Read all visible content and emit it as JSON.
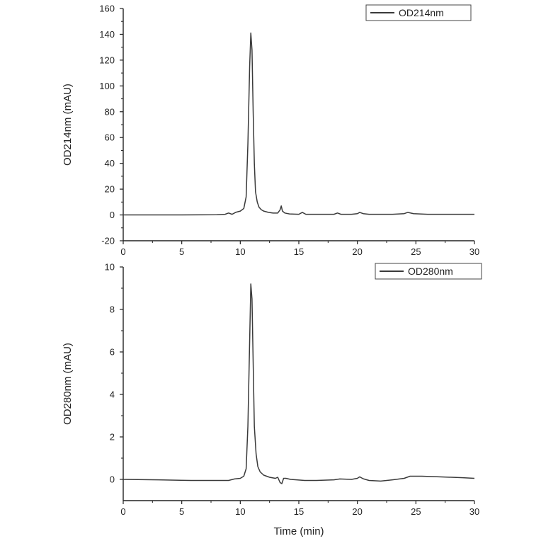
{
  "chart_data": [
    {
      "type": "line",
      "title": "",
      "xlabel": "",
      "ylabel": "OD214nm (mAU)",
      "xlim": [
        0,
        30
      ],
      "ylim": [
        -20,
        160
      ],
      "xticks": [
        "0",
        "5",
        "10",
        "15",
        "20",
        "25",
        "30"
      ],
      "yticks": [
        "-20",
        "0",
        "20",
        "40",
        "60",
        "80",
        "100",
        "120",
        "140",
        "160"
      ],
      "grid": false,
      "legend_position": "top-right",
      "series": [
        {
          "name": "OD214nm",
          "color": "#3a3a3a",
          "x": [
            0,
            5,
            8,
            8.7,
            9.0,
            9.3,
            9.6,
            10.0,
            10.3,
            10.5,
            10.65,
            10.8,
            10.9,
            11.0,
            11.1,
            11.2,
            11.3,
            11.45,
            11.6,
            11.8,
            12.0,
            12.4,
            12.8,
            13.2,
            13.4,
            13.5,
            13.6,
            13.8,
            14.2,
            15.0,
            15.3,
            15.6,
            16.0,
            18.0,
            18.3,
            18.6,
            19.5,
            20.0,
            20.2,
            20.5,
            21.0,
            23.0,
            24.0,
            24.3,
            24.8,
            26.0,
            30
          ],
          "y": [
            0,
            0,
            0.2,
            0.5,
            1.5,
            0.5,
            2,
            3,
            5,
            14,
            55,
            115,
            141,
            128,
            80,
            40,
            18,
            10,
            6,
            4,
            3,
            2,
            1.5,
            1.5,
            4,
            7,
            3,
            1.5,
            0.8,
            0.5,
            2,
            0.5,
            0.5,
            0.5,
            1.5,
            0.5,
            0.5,
            1,
            2,
            1,
            0.5,
            0.5,
            1,
            2,
            1,
            0.5,
            0.5
          ]
        }
      ]
    },
    {
      "type": "line",
      "title": "",
      "xlabel": "Time (min)",
      "ylabel": "OD280nm (mAU)",
      "xlim": [
        0,
        30
      ],
      "ylim": [
        -1,
        10
      ],
      "xticks": [
        "0",
        "5",
        "10",
        "15",
        "20",
        "25",
        "30"
      ],
      "yticks": [
        "0",
        "2",
        "4",
        "6",
        "8",
        "10"
      ],
      "grid": false,
      "legend_position": "top-right",
      "series": [
        {
          "name": "OD280nm",
          "color": "#3a3a3a",
          "x": [
            0,
            3,
            5.8,
            8,
            9.0,
            9.5,
            10.0,
            10.3,
            10.5,
            10.65,
            10.8,
            10.9,
            11.0,
            11.1,
            11.2,
            11.35,
            11.5,
            11.7,
            12.0,
            12.5,
            13.0,
            13.2,
            13.4,
            13.55,
            13.7,
            13.9,
            14.3,
            15.5,
            16.5,
            18.0,
            18.5,
            19.5,
            20.0,
            20.2,
            20.5,
            21.0,
            22.0,
            23.0,
            24.0,
            24.5,
            25.5,
            27.0,
            29.0,
            30
          ],
          "y": [
            0,
            -0.02,
            -0.05,
            -0.05,
            -0.05,
            0.02,
            0.05,
            0.15,
            0.5,
            2.5,
            6.5,
            9.2,
            8.5,
            5.5,
            2.5,
            1.2,
            0.6,
            0.35,
            0.2,
            0.1,
            0.05,
            0.1,
            -0.15,
            -0.2,
            0.05,
            0.05,
            0.0,
            -0.05,
            -0.05,
            -0.02,
            0.02,
            0.0,
            0.05,
            0.12,
            0.03,
            -0.05,
            -0.08,
            -0.02,
            0.05,
            0.15,
            0.15,
            0.12,
            0.08,
            0.05
          ]
        }
      ]
    }
  ]
}
